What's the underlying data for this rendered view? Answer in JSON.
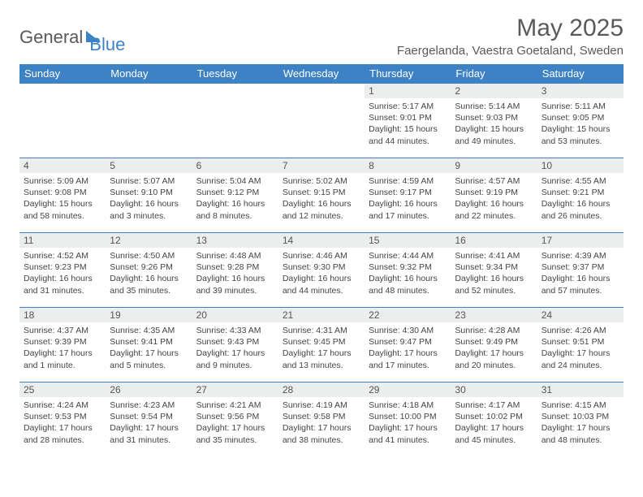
{
  "logo": {
    "part1": "General",
    "part2": "Blue"
  },
  "title": "May 2025",
  "location": "Faergelanda, Vaestra Goetaland, Sweden",
  "colors": {
    "header_bg": "#3d82c4",
    "header_text": "#ffffff",
    "daynum_bg": "#eceded",
    "text": "#444444",
    "border": "#3d82c4"
  },
  "weekdays": [
    "Sunday",
    "Monday",
    "Tuesday",
    "Wednesday",
    "Thursday",
    "Friday",
    "Saturday"
  ],
  "weeks": [
    [
      {
        "n": "",
        "sr": "",
        "ss": "",
        "dl": "",
        "empty": true
      },
      {
        "n": "",
        "sr": "",
        "ss": "",
        "dl": "",
        "empty": true
      },
      {
        "n": "",
        "sr": "",
        "ss": "",
        "dl": "",
        "empty": true
      },
      {
        "n": "",
        "sr": "",
        "ss": "",
        "dl": "",
        "empty": true
      },
      {
        "n": "1",
        "sr": "Sunrise: 5:17 AM",
        "ss": "Sunset: 9:01 PM",
        "dl": "Daylight: 15 hours and 44 minutes."
      },
      {
        "n": "2",
        "sr": "Sunrise: 5:14 AM",
        "ss": "Sunset: 9:03 PM",
        "dl": "Daylight: 15 hours and 49 minutes."
      },
      {
        "n": "3",
        "sr": "Sunrise: 5:11 AM",
        "ss": "Sunset: 9:05 PM",
        "dl": "Daylight: 15 hours and 53 minutes."
      }
    ],
    [
      {
        "n": "4",
        "sr": "Sunrise: 5:09 AM",
        "ss": "Sunset: 9:08 PM",
        "dl": "Daylight: 15 hours and 58 minutes."
      },
      {
        "n": "5",
        "sr": "Sunrise: 5:07 AM",
        "ss": "Sunset: 9:10 PM",
        "dl": "Daylight: 16 hours and 3 minutes."
      },
      {
        "n": "6",
        "sr": "Sunrise: 5:04 AM",
        "ss": "Sunset: 9:12 PM",
        "dl": "Daylight: 16 hours and 8 minutes."
      },
      {
        "n": "7",
        "sr": "Sunrise: 5:02 AM",
        "ss": "Sunset: 9:15 PM",
        "dl": "Daylight: 16 hours and 12 minutes."
      },
      {
        "n": "8",
        "sr": "Sunrise: 4:59 AM",
        "ss": "Sunset: 9:17 PM",
        "dl": "Daylight: 16 hours and 17 minutes."
      },
      {
        "n": "9",
        "sr": "Sunrise: 4:57 AM",
        "ss": "Sunset: 9:19 PM",
        "dl": "Daylight: 16 hours and 22 minutes."
      },
      {
        "n": "10",
        "sr": "Sunrise: 4:55 AM",
        "ss": "Sunset: 9:21 PM",
        "dl": "Daylight: 16 hours and 26 minutes."
      }
    ],
    [
      {
        "n": "11",
        "sr": "Sunrise: 4:52 AM",
        "ss": "Sunset: 9:23 PM",
        "dl": "Daylight: 16 hours and 31 minutes."
      },
      {
        "n": "12",
        "sr": "Sunrise: 4:50 AM",
        "ss": "Sunset: 9:26 PM",
        "dl": "Daylight: 16 hours and 35 minutes."
      },
      {
        "n": "13",
        "sr": "Sunrise: 4:48 AM",
        "ss": "Sunset: 9:28 PM",
        "dl": "Daylight: 16 hours and 39 minutes."
      },
      {
        "n": "14",
        "sr": "Sunrise: 4:46 AM",
        "ss": "Sunset: 9:30 PM",
        "dl": "Daylight: 16 hours and 44 minutes."
      },
      {
        "n": "15",
        "sr": "Sunrise: 4:44 AM",
        "ss": "Sunset: 9:32 PM",
        "dl": "Daylight: 16 hours and 48 minutes."
      },
      {
        "n": "16",
        "sr": "Sunrise: 4:41 AM",
        "ss": "Sunset: 9:34 PM",
        "dl": "Daylight: 16 hours and 52 minutes."
      },
      {
        "n": "17",
        "sr": "Sunrise: 4:39 AM",
        "ss": "Sunset: 9:37 PM",
        "dl": "Daylight: 16 hours and 57 minutes."
      }
    ],
    [
      {
        "n": "18",
        "sr": "Sunrise: 4:37 AM",
        "ss": "Sunset: 9:39 PM",
        "dl": "Daylight: 17 hours and 1 minute."
      },
      {
        "n": "19",
        "sr": "Sunrise: 4:35 AM",
        "ss": "Sunset: 9:41 PM",
        "dl": "Daylight: 17 hours and 5 minutes."
      },
      {
        "n": "20",
        "sr": "Sunrise: 4:33 AM",
        "ss": "Sunset: 9:43 PM",
        "dl": "Daylight: 17 hours and 9 minutes."
      },
      {
        "n": "21",
        "sr": "Sunrise: 4:31 AM",
        "ss": "Sunset: 9:45 PM",
        "dl": "Daylight: 17 hours and 13 minutes."
      },
      {
        "n": "22",
        "sr": "Sunrise: 4:30 AM",
        "ss": "Sunset: 9:47 PM",
        "dl": "Daylight: 17 hours and 17 minutes."
      },
      {
        "n": "23",
        "sr": "Sunrise: 4:28 AM",
        "ss": "Sunset: 9:49 PM",
        "dl": "Daylight: 17 hours and 20 minutes."
      },
      {
        "n": "24",
        "sr": "Sunrise: 4:26 AM",
        "ss": "Sunset: 9:51 PM",
        "dl": "Daylight: 17 hours and 24 minutes."
      }
    ],
    [
      {
        "n": "25",
        "sr": "Sunrise: 4:24 AM",
        "ss": "Sunset: 9:53 PM",
        "dl": "Daylight: 17 hours and 28 minutes."
      },
      {
        "n": "26",
        "sr": "Sunrise: 4:23 AM",
        "ss": "Sunset: 9:54 PM",
        "dl": "Daylight: 17 hours and 31 minutes."
      },
      {
        "n": "27",
        "sr": "Sunrise: 4:21 AM",
        "ss": "Sunset: 9:56 PM",
        "dl": "Daylight: 17 hours and 35 minutes."
      },
      {
        "n": "28",
        "sr": "Sunrise: 4:19 AM",
        "ss": "Sunset: 9:58 PM",
        "dl": "Daylight: 17 hours and 38 minutes."
      },
      {
        "n": "29",
        "sr": "Sunrise: 4:18 AM",
        "ss": "Sunset: 10:00 PM",
        "dl": "Daylight: 17 hours and 41 minutes."
      },
      {
        "n": "30",
        "sr": "Sunrise: 4:17 AM",
        "ss": "Sunset: 10:02 PM",
        "dl": "Daylight: 17 hours and 45 minutes."
      },
      {
        "n": "31",
        "sr": "Sunrise: 4:15 AM",
        "ss": "Sunset: 10:03 PM",
        "dl": "Daylight: 17 hours and 48 minutes."
      }
    ]
  ]
}
